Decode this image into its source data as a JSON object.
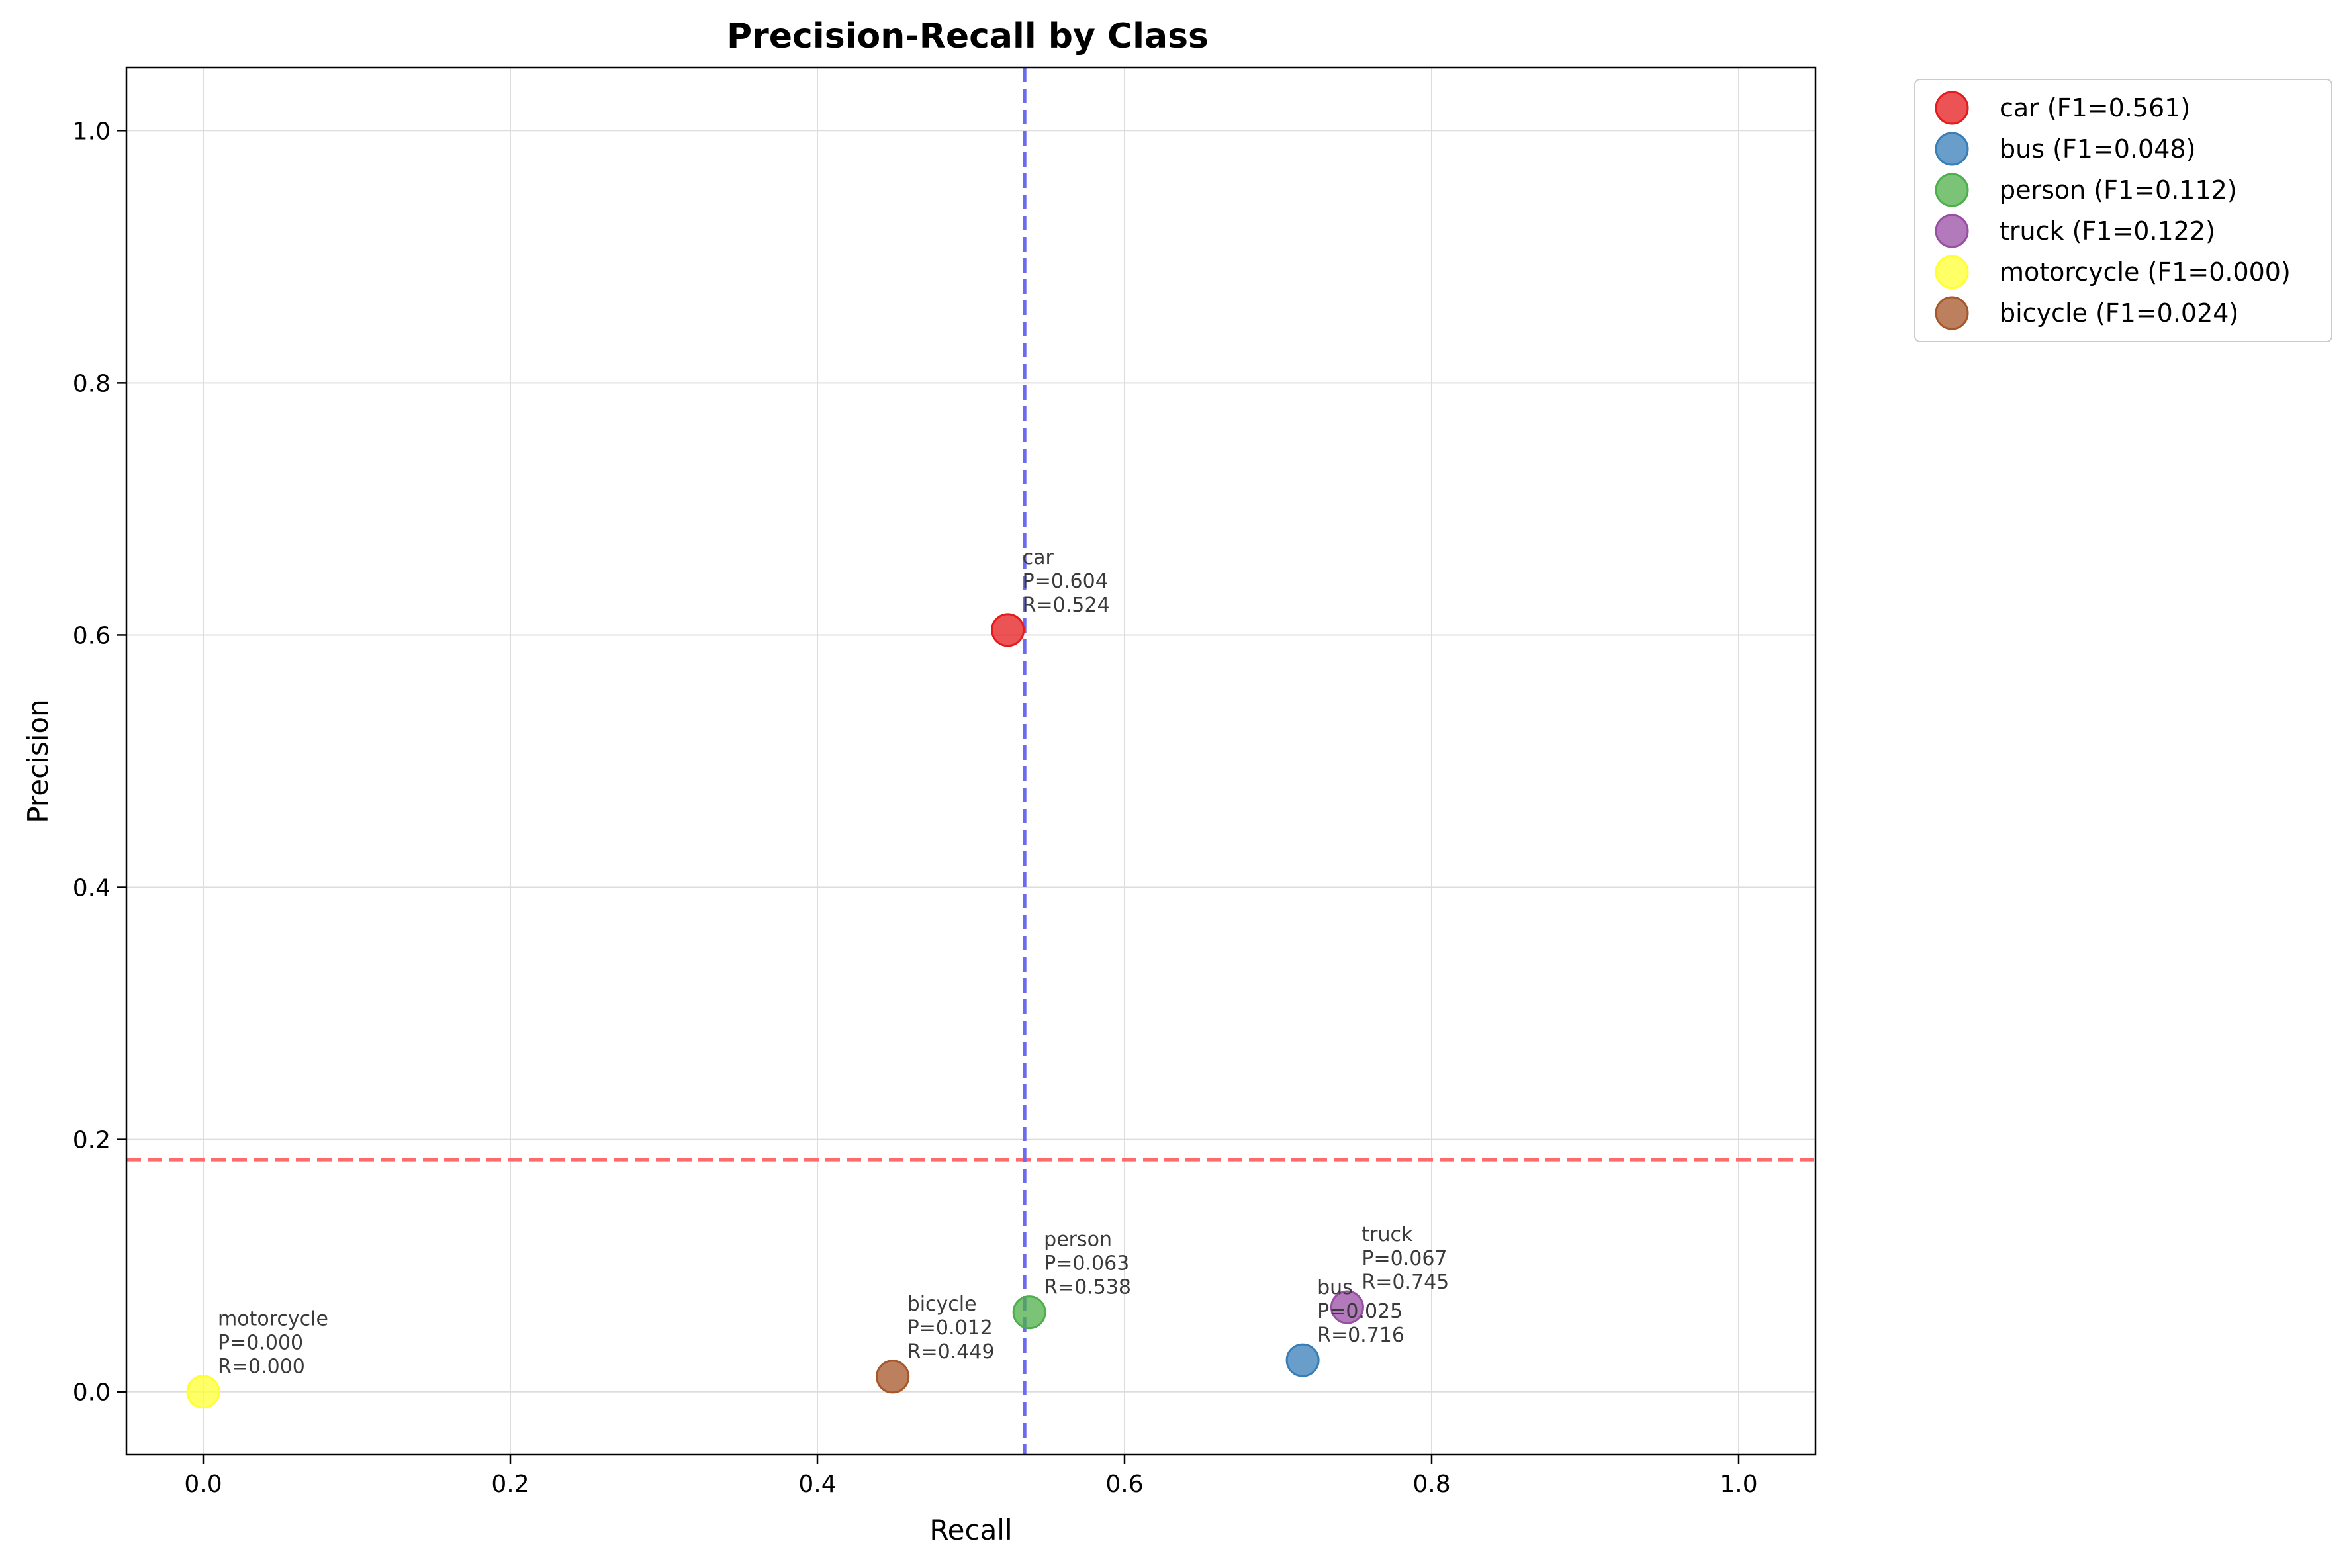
{
  "chart_data": {
    "type": "scatter",
    "title": "Precision-Recall by Class",
    "xlabel": "Recall",
    "ylabel": "Precision",
    "xlim": [
      -0.05,
      1.05
    ],
    "ylim": [
      -0.05,
      1.05
    ],
    "xticks": [
      0.0,
      0.2,
      0.4,
      0.6,
      0.8,
      1.0
    ],
    "xtick_labels": [
      "0.0",
      "0.2",
      "0.4",
      "0.6",
      "0.8",
      "1.0"
    ],
    "yticks": [
      0.0,
      0.2,
      0.4,
      0.6,
      0.8,
      1.0
    ],
    "ytick_labels": [
      "0.0",
      "0.2",
      "0.4",
      "0.6",
      "0.8",
      "1.0"
    ],
    "grid": true,
    "legend_position": "outside-top-right",
    "reference_lines": [
      {
        "orientation": "horizontal",
        "value": 0.184,
        "color": "#ff6b6b",
        "style": "dashed"
      },
      {
        "orientation": "vertical",
        "value": 0.535,
        "color": "#6b6bef",
        "style": "dashed"
      }
    ],
    "series": [
      {
        "name": "car (F1=0.561)",
        "color": "#e41a1c",
        "x": 0.524,
        "y": 0.604,
        "annotation": [
          "car",
          "P=0.604",
          "R=0.524"
        ]
      },
      {
        "name": "bus (F1=0.048)",
        "color": "#377eb8",
        "x": 0.716,
        "y": 0.025,
        "annotation": [
          "bus",
          "P=0.025",
          "R=0.716"
        ]
      },
      {
        "name": "person (F1=0.112)",
        "color": "#4daf4a",
        "x": 0.538,
        "y": 0.063,
        "annotation": [
          "person",
          "P=0.063",
          "R=0.538"
        ]
      },
      {
        "name": "truck (F1=0.122)",
        "color": "#984ea3",
        "x": 0.745,
        "y": 0.067,
        "annotation": [
          "truck",
          "P=0.067",
          "R=0.745"
        ]
      },
      {
        "name": "motorcycle (F1=0.000)",
        "color": "#ffff33",
        "x": 0.0,
        "y": 0.0,
        "annotation": [
          "motorcycle",
          "P=0.000",
          "R=0.000"
        ]
      },
      {
        "name": "bicycle (F1=0.024)",
        "color": "#a65628",
        "x": 0.449,
        "y": 0.012,
        "annotation": [
          "bicycle",
          "P=0.012",
          "R=0.449"
        ]
      }
    ]
  }
}
